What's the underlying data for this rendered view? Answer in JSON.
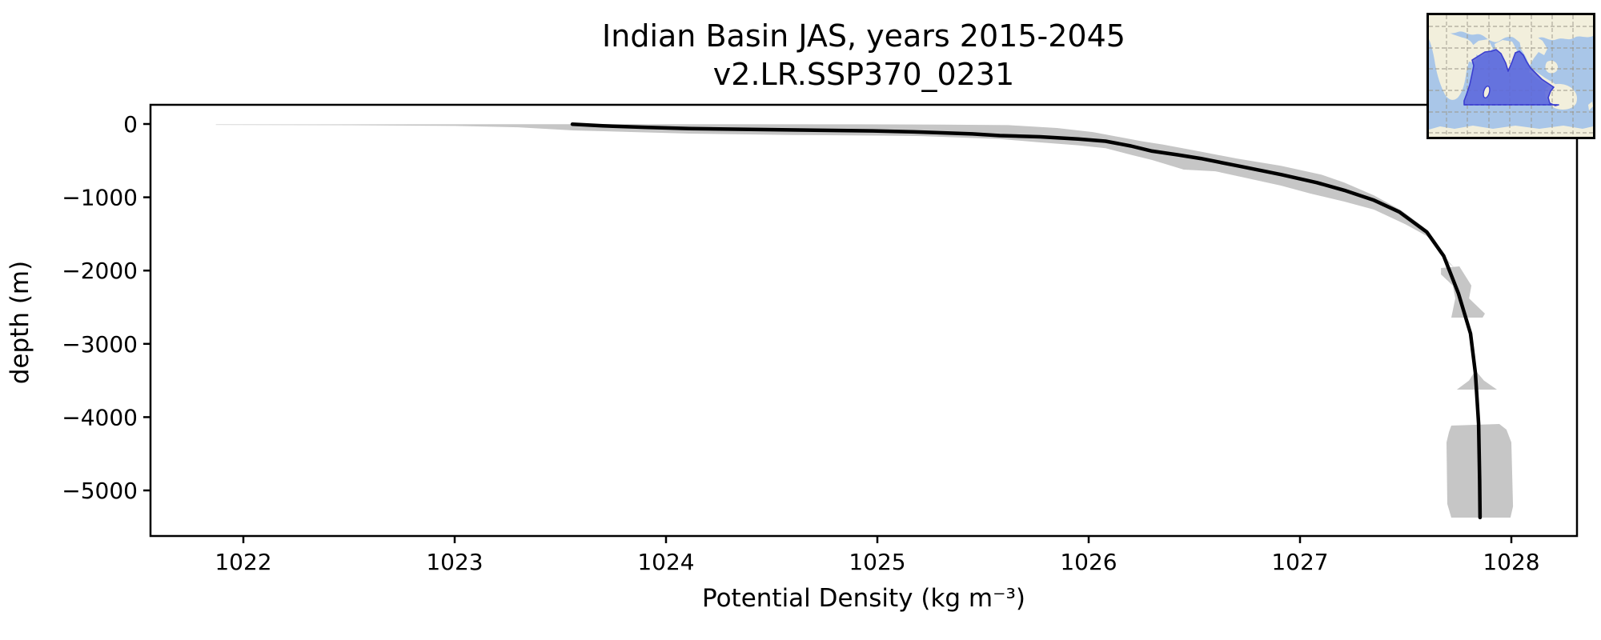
{
  "title": {
    "line1": "Indian Basin JAS, years 2015-2045",
    "line2": "v2.LR.SSP370_0231"
  },
  "axes": {
    "xlabel": "Potential Density (kg m⁻³)",
    "ylabel": "depth (m)"
  },
  "colors": {
    "line": "#000000",
    "band": "#c6c6c6",
    "frame": "#000000",
    "map_ocean": "#a9c6e8",
    "map_land": "#f2efdc",
    "map_graticule": "#9a9588",
    "basin_fill": "#5b68dc",
    "basin_stroke": "#3a3ecf"
  },
  "inset_map": {
    "name": "indian-ocean-basin-locator",
    "highlighted_region": "Indian Ocean basin"
  },
  "chart_data": {
    "type": "line",
    "title": "Indian Basin JAS, years 2015-2045 / v2.LR.SSP370_0231",
    "xlabel": "Potential Density (kg m⁻³)",
    "ylabel": "depth (m)",
    "xlim": [
      1021.5606,
      1028.3106
    ],
    "ylim": [
      -5622,
      262
    ],
    "grid": false,
    "legend": "none",
    "x_ticks": [
      1022,
      1023,
      1024,
      1025,
      1026,
      1027,
      1028
    ],
    "x_tick_labels": [
      "1022",
      "1023",
      "1024",
      "1025",
      "1026",
      "1027",
      "1028"
    ],
    "y_ticks": [
      0,
      -1000,
      -2000,
      -3000,
      -4000,
      -5000
    ],
    "y_tick_labels": [
      "0",
      "−1000",
      "−2000",
      "−3000",
      "−4000",
      "−5000"
    ],
    "series": [
      {
        "name": "mean potential density profile",
        "color": "#000000",
        "points": [
          [
            1023.557,
            -3
          ],
          [
            1023.7,
            -25
          ],
          [
            1023.9,
            -45
          ],
          [
            1024.11,
            -62
          ],
          [
            1024.4,
            -74
          ],
          [
            1024.7,
            -84
          ],
          [
            1024.98,
            -94
          ],
          [
            1025.21,
            -110
          ],
          [
            1025.45,
            -135
          ],
          [
            1025.58,
            -158
          ],
          [
            1025.77,
            -175
          ],
          [
            1025.95,
            -205
          ],
          [
            1026.08,
            -235
          ],
          [
            1026.2,
            -300
          ],
          [
            1026.3,
            -370
          ],
          [
            1026.42,
            -420
          ],
          [
            1026.53,
            -470
          ],
          [
            1026.72,
            -580
          ],
          [
            1026.91,
            -690
          ],
          [
            1027.08,
            -800
          ],
          [
            1027.21,
            -905
          ],
          [
            1027.35,
            -1040
          ],
          [
            1027.47,
            -1200
          ],
          [
            1027.6,
            -1475
          ],
          [
            1027.68,
            -1800
          ],
          [
            1027.75,
            -2315
          ],
          [
            1027.807,
            -2860
          ],
          [
            1027.83,
            -3400
          ],
          [
            1027.845,
            -4090
          ],
          [
            1027.85,
            -4860
          ],
          [
            1027.852,
            -5370
          ]
        ]
      }
    ],
    "envelope_band": {
      "name": "min-max spread",
      "color": "#c6c6c6",
      "upper": [
        [
          1021.87,
          -5
        ],
        [
          1022.6,
          -4
        ],
        [
          1023.2,
          -3
        ],
        [
          1023.56,
          -2
        ],
        [
          1024.3,
          -2
        ],
        [
          1024.9,
          -4
        ],
        [
          1025.3,
          -8
        ],
        [
          1025.62,
          -15
        ],
        [
          1025.85,
          -55
        ],
        [
          1026.02,
          -110
        ],
        [
          1026.15,
          -180
        ],
        [
          1026.25,
          -235
        ],
        [
          1026.35,
          -280
        ],
        [
          1026.5,
          -360
        ],
        [
          1026.7,
          -470
        ],
        [
          1026.91,
          -570
        ],
        [
          1027.1,
          -690
        ],
        [
          1027.21,
          -800
        ],
        [
          1027.35,
          -975
        ],
        [
          1027.48,
          -1180
        ],
        [
          1027.6,
          -1440
        ],
        [
          1027.64,
          -1590
        ],
        [
          1027.7,
          -1890
        ],
        [
          1027.73,
          -1960
        ]
      ],
      "lower": [
        [
          1021.87,
          -12
        ],
        [
          1022.5,
          -16
        ],
        [
          1023.0,
          -26
        ],
        [
          1023.3,
          -45
        ],
        [
          1023.56,
          -87
        ],
        [
          1023.85,
          -110
        ],
        [
          1024.11,
          -131
        ],
        [
          1024.6,
          -150
        ],
        [
          1025.0,
          -158
        ],
        [
          1025.21,
          -165
        ],
        [
          1025.58,
          -205
        ],
        [
          1025.77,
          -251
        ],
        [
          1025.95,
          -290
        ],
        [
          1026.08,
          -330
        ],
        [
          1026.2,
          -420
        ],
        [
          1026.3,
          -491
        ],
        [
          1026.45,
          -622
        ],
        [
          1026.6,
          -645
        ],
        [
          1026.75,
          -740
        ],
        [
          1026.91,
          -841
        ],
        [
          1027.05,
          -950
        ],
        [
          1027.21,
          -1059
        ],
        [
          1027.35,
          -1168
        ],
        [
          1027.5,
          -1370
        ],
        [
          1027.6,
          -1528
        ],
        [
          1027.66,
          -1700
        ],
        [
          1027.71,
          -1900
        ],
        [
          1027.73,
          -1960
        ]
      ]
    },
    "deep_spread_patches": [
      {
        "name": "spread patch -2000 to -2650 m",
        "points": [
          [
            1027.667,
            -1965
          ],
          [
            1027.754,
            -1943
          ],
          [
            1027.811,
            -2205
          ],
          [
            1027.8,
            -2380
          ],
          [
            1027.875,
            -2587
          ],
          [
            1027.864,
            -2642
          ],
          [
            1027.716,
            -2642
          ],
          [
            1027.735,
            -2380
          ],
          [
            1027.723,
            -2205
          ],
          [
            1027.667,
            -2052
          ]
        ]
      },
      {
        "name": "spread patch -3350 to -3650 m",
        "points": [
          [
            1027.83,
            -3362
          ],
          [
            1027.87,
            -3500
          ],
          [
            1027.932,
            -3624
          ],
          [
            1027.742,
            -3624
          ],
          [
            1027.8,
            -3500
          ]
        ]
      },
      {
        "name": "spread patch -4100 to -5370 m",
        "points": [
          [
            1027.716,
            -4116
          ],
          [
            1027.943,
            -4094
          ],
          [
            1027.977,
            -4170
          ],
          [
            1028.0,
            -4345
          ],
          [
            1028.008,
            -5218
          ],
          [
            1027.996,
            -5371
          ],
          [
            1027.716,
            -5371
          ],
          [
            1027.697,
            -5185
          ],
          [
            1027.693,
            -4345
          ],
          [
            1027.705,
            -4203
          ]
        ]
      }
    ]
  }
}
